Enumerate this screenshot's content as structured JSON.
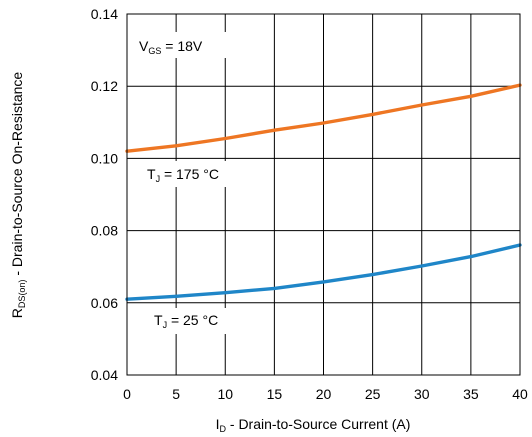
{
  "chart_data": {
    "type": "line",
    "xlabel": {
      "main": "I",
      "sub": "D",
      "rest": " - Drain-to-Source Current (A)"
    },
    "ylabel": {
      "main": "R",
      "sub": "DS(on)",
      "rest": " - Drain-to-Source On-Resistance"
    },
    "xlim": [
      0,
      40
    ],
    "ylim": [
      0.04,
      0.14
    ],
    "xticks": [
      "0",
      "5",
      "10",
      "15",
      "20",
      "25",
      "30",
      "35",
      "40"
    ],
    "yticks": [
      "0.04",
      "0.06",
      "0.08",
      "0.10",
      "0.12",
      "0.14"
    ],
    "grid": true,
    "annotations": [
      {
        "id": "vgs",
        "main": "V",
        "sub": "GS",
        "rest": " = 18V"
      },
      {
        "id": "tj175",
        "main": "T",
        "sub": "J",
        "rest": " = 175 °C"
      },
      {
        "id": "tj25",
        "main": "T",
        "sub": "J",
        "rest": " = 25 °C"
      }
    ],
    "series": [
      {
        "color": "#EE7623",
        "x": [
          0,
          5,
          10,
          15,
          20,
          25,
          30,
          35,
          40
        ],
        "y": [
          0.102,
          0.1035,
          0.1055,
          0.1078,
          0.1098,
          0.1122,
          0.1148,
          0.1172,
          0.1203
        ]
      },
      {
        "color": "#1F86C8",
        "x": [
          0,
          5,
          10,
          15,
          20,
          25,
          30,
          35,
          40
        ],
        "y": [
          0.061,
          0.0618,
          0.0628,
          0.064,
          0.0658,
          0.0678,
          0.0702,
          0.0728,
          0.076
        ]
      }
    ]
  }
}
